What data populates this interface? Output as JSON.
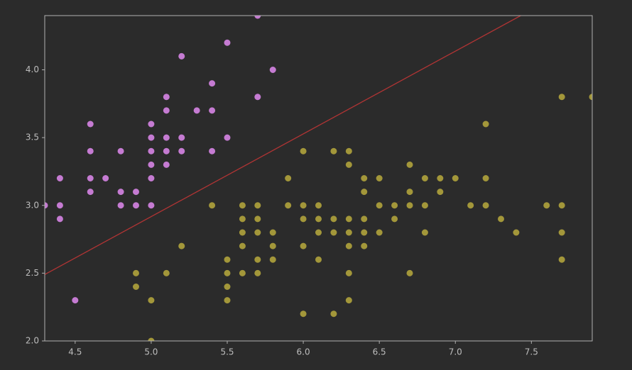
{
  "chart_data": {
    "type": "scatter",
    "xlim": [
      4.3,
      7.9
    ],
    "ylim": [
      2.0,
      4.4
    ],
    "xticks": [
      4.5,
      {
        "value": 5,
        "label": "5.0"
      },
      5.5,
      {
        "value": 6,
        "label": "6.0"
      },
      6.5,
      {
        "value": 7,
        "label": "7.0"
      },
      7.5
    ],
    "yticks": [
      {
        "value": 2,
        "label": "2.0"
      },
      2.5,
      {
        "value": 3,
        "label": "3.0"
      },
      3.5,
      {
        "value": 4,
        "label": "4.0"
      }
    ],
    "series": [
      {
        "type": "scatter",
        "color": "#c57bd2",
        "x": [
          4.3,
          4.4,
          4.4,
          4.4,
          4.5,
          4.6,
          4.6,
          4.6,
          4.6,
          4.7,
          4.8,
          4.8,
          4.8,
          4.9,
          4.9,
          5.0,
          5.0,
          5.0,
          5.0,
          5.0,
          5.0,
          5.1,
          5.1,
          5.1,
          5.1,
          5.1,
          5.2,
          5.2,
          5.2,
          5.3,
          5.4,
          5.4,
          5.4,
          5.5,
          5.5,
          5.7,
          5.7,
          5.8
        ],
        "values": [
          3.0,
          3.2,
          3.0,
          2.9,
          2.3,
          3.6,
          3.4,
          3.2,
          3.1,
          3.2,
          3.4,
          3.1,
          3.0,
          3.1,
          3.0,
          3.6,
          3.5,
          3.4,
          3.3,
          3.2,
          3.0,
          3.8,
          3.7,
          3.5,
          3.4,
          3.3,
          4.1,
          3.5,
          3.4,
          3.7,
          3.9,
          3.7,
          3.4,
          4.2,
          3.5,
          4.4,
          3.8,
          4.0
        ]
      },
      {
        "type": "scatter",
        "color": "#a3973a",
        "x": [
          4.9,
          4.9,
          5.0,
          5.0,
          5.1,
          5.2,
          5.4,
          5.5,
          5.5,
          5.5,
          5.5,
          5.6,
          5.6,
          5.6,
          5.6,
          5.6,
          5.7,
          5.7,
          5.7,
          5.7,
          5.7,
          5.8,
          5.8,
          5.8,
          5.9,
          5.9,
          6.0,
          6.0,
          6.0,
          6.0,
          6.0,
          6.1,
          6.1,
          6.1,
          6.1,
          6.2,
          6.2,
          6.2,
          6.2,
          6.3,
          6.3,
          6.3,
          6.3,
          6.3,
          6.3,
          6.3,
          6.4,
          6.4,
          6.4,
          6.4,
          6.4,
          6.5,
          6.5,
          6.5,
          6.6,
          6.6,
          6.7,
          6.7,
          6.7,
          6.7,
          6.8,
          6.8,
          6.8,
          6.9,
          6.9,
          7.0,
          7.1,
          7.2,
          7.2,
          7.2,
          7.3,
          7.4,
          7.6,
          7.7,
          7.7,
          7.7,
          7.7,
          7.9
        ],
        "values": [
          2.5,
          2.4,
          2.3,
          2.0,
          2.5,
          2.7,
          3.0,
          2.6,
          2.5,
          2.4,
          2.3,
          3.0,
          2.9,
          2.8,
          2.7,
          2.5,
          3.0,
          2.9,
          2.8,
          2.6,
          2.5,
          2.8,
          2.7,
          2.6,
          3.2,
          3.0,
          3.4,
          3.0,
          2.9,
          2.7,
          2.2,
          3.0,
          2.9,
          2.8,
          2.6,
          3.4,
          2.9,
          2.8,
          2.2,
          3.4,
          3.3,
          2.9,
          2.8,
          2.7,
          2.5,
          2.3,
          3.2,
          3.1,
          2.9,
          2.8,
          2.7,
          3.2,
          3.0,
          2.8,
          3.0,
          2.9,
          3.3,
          3.1,
          3.0,
          2.5,
          3.2,
          3.0,
          2.8,
          3.2,
          3.1,
          3.2,
          3.0,
          3.6,
          3.2,
          3.0,
          2.9,
          2.8,
          3.0,
          3.8,
          3.0,
          2.8,
          2.6,
          3.8
        ]
      },
      {
        "type": "line",
        "color": "#b03434",
        "x": [
          4.3,
          7.43
        ],
        "values": [
          2.49,
          4.4
        ]
      }
    ]
  }
}
